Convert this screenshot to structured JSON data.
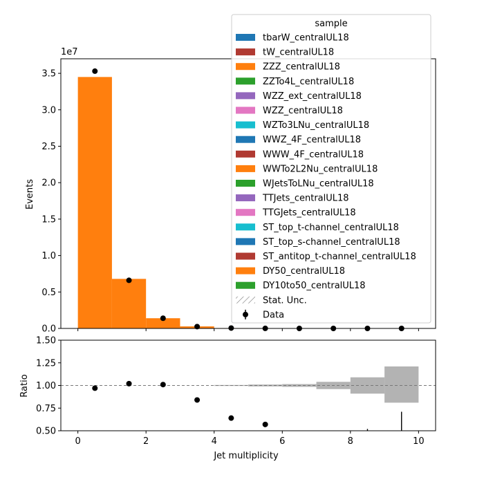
{
  "chart_data": [
    {
      "type": "bar",
      "subtype": "stacked-histogram",
      "ylabel": "Events",
      "y_multiplier_label": "1e7",
      "ylim": [
        0,
        3.7
      ],
      "y_units_note": "values in units of 1e7",
      "xlim": [
        -0.5,
        10.5
      ],
      "x_bin_edges": [
        0,
        1,
        2,
        3,
        4,
        5,
        6,
        7,
        8,
        9,
        10
      ],
      "yticks": [
        "0.0",
        "0.5",
        "1.0",
        "1.5",
        "2.0",
        "2.5",
        "3.0",
        "3.5"
      ],
      "series": [
        {
          "name": "DY50_centralUL18",
          "color": "#ff7f0e",
          "values": [
            3.45,
            0.68,
            0.14,
            0.028,
            0.005,
            0.0008,
            0.0001,
            0.0,
            0.0,
            0.0
          ]
        }
      ],
      "data": {
        "name": "Data",
        "x": [
          0.5,
          1.5,
          2.5,
          3.5,
          4.5,
          5.5,
          6.5,
          7.5,
          8.5,
          9.5
        ],
        "y": [
          3.53,
          0.66,
          0.14,
          0.025,
          0.005,
          0.0006,
          0.0,
          0.0,
          0.0,
          0.0
        ]
      },
      "legend": {
        "title": "sample",
        "placement": "top-right",
        "entries": [
          {
            "label": "tbarW_centralUL18",
            "color": "#1f77b4",
            "kind": "patch"
          },
          {
            "label": "tW_centralUL18",
            "color": "#b03a32",
            "kind": "patch"
          },
          {
            "label": "ZZZ_centralUL18",
            "color": "#ff7f0e",
            "kind": "patch"
          },
          {
            "label": "ZZTo4L_centralUL18",
            "color": "#2ca02c",
            "kind": "patch"
          },
          {
            "label": "WZZ_ext_centralUL18",
            "color": "#9467bd",
            "kind": "patch"
          },
          {
            "label": "WZZ_centralUL18",
            "color": "#e377c2",
            "kind": "patch"
          },
          {
            "label": "WZTo3LNu_centralUL18",
            "color": "#17becf",
            "kind": "patch"
          },
          {
            "label": "WWZ_4F_centralUL18",
            "color": "#1f77b4",
            "kind": "patch"
          },
          {
            "label": "WWW_4F_centralUL18",
            "color": "#b03a32",
            "kind": "patch"
          },
          {
            "label": "WWTo2L2Nu_centralUL18",
            "color": "#ff7f0e",
            "kind": "patch"
          },
          {
            "label": "WJetsToLNu_centralUL18",
            "color": "#2ca02c",
            "kind": "patch"
          },
          {
            "label": "TTJets_centralUL18",
            "color": "#9467bd",
            "kind": "patch"
          },
          {
            "label": "TTGJets_centralUL18",
            "color": "#e377c2",
            "kind": "patch"
          },
          {
            "label": "ST_top_t-channel_centralUL18",
            "color": "#17becf",
            "kind": "patch"
          },
          {
            "label": "ST_top_s-channel_centralUL18",
            "color": "#1f77b4",
            "kind": "patch"
          },
          {
            "label": "ST_antitop_t-channel_centralUL18",
            "color": "#b03a32",
            "kind": "patch"
          },
          {
            "label": "DY50_centralUL18",
            "color": "#ff7f0e",
            "kind": "patch"
          },
          {
            "label": "DY10to50_centralUL18",
            "color": "#2ca02c",
            "kind": "patch"
          },
          {
            "label": "Stat. Unc.",
            "color": "#808080",
            "kind": "hatch"
          },
          {
            "label": "Data",
            "color": "#000000",
            "kind": "errorbar"
          }
        ]
      }
    },
    {
      "type": "scatter",
      "subtype": "ratio-panel",
      "xlabel": "Jet multiplicity",
      "ylabel": "Ratio",
      "xlim": [
        -0.5,
        10.5
      ],
      "ylim": [
        0.5,
        1.5
      ],
      "xticks": [
        "0",
        "2",
        "4",
        "6",
        "8",
        "10"
      ],
      "yticks": [
        "0.50",
        "0.75",
        "1.00",
        "1.25",
        "1.50"
      ],
      "reference_line": 1.0,
      "ratio_points": {
        "x": [
          0.5,
          1.5,
          2.5,
          3.5,
          4.5,
          5.5
        ],
        "y": [
          0.97,
          1.02,
          1.01,
          0.84,
          0.64,
          0.57
        ]
      },
      "uncertainty_band": {
        "bin_edges": [
          4,
          5,
          6,
          7,
          8,
          9,
          10
        ],
        "low": [
          0.995,
          0.99,
          0.985,
          0.96,
          0.91,
          0.81
        ],
        "high": [
          1.005,
          1.01,
          1.015,
          1.04,
          1.09,
          1.21
        ]
      },
      "error_bars": [
        {
          "x": 8.5,
          "low": 0.5,
          "high": 0.52
        },
        {
          "x": 9.5,
          "low": 0.5,
          "high": 0.71
        }
      ]
    }
  ]
}
